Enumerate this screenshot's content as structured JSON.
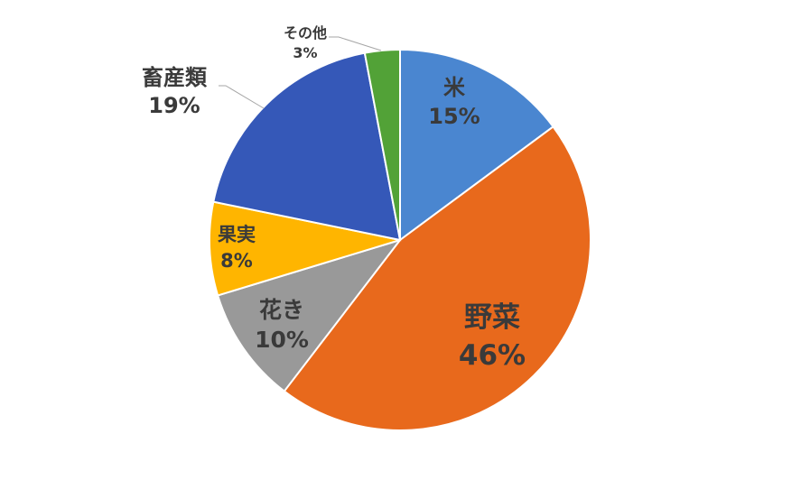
{
  "chart_data": {
    "type": "pie",
    "title": "",
    "slices": [
      {
        "label": "米",
        "value": 15,
        "pct_label": "15%",
        "color": "#4a86d0"
      },
      {
        "label": "野菜",
        "value": 46,
        "pct_label": "46%",
        "color": "#e8691c"
      },
      {
        "label": "花き",
        "value": 10,
        "pct_label": "10%",
        "color": "#999999"
      },
      {
        "label": "果実",
        "value": 8,
        "pct_label": "8%",
        "color": "#ffb500"
      },
      {
        "label": "畜産類",
        "value": 19,
        "pct_label": "19%",
        "color": "#3558b8"
      },
      {
        "label": "その他",
        "value": 3,
        "pct_label": "3%",
        "color": "#52a237"
      }
    ],
    "legend": "none",
    "start_angle": "12 o'clock",
    "direction": "clockwise"
  }
}
